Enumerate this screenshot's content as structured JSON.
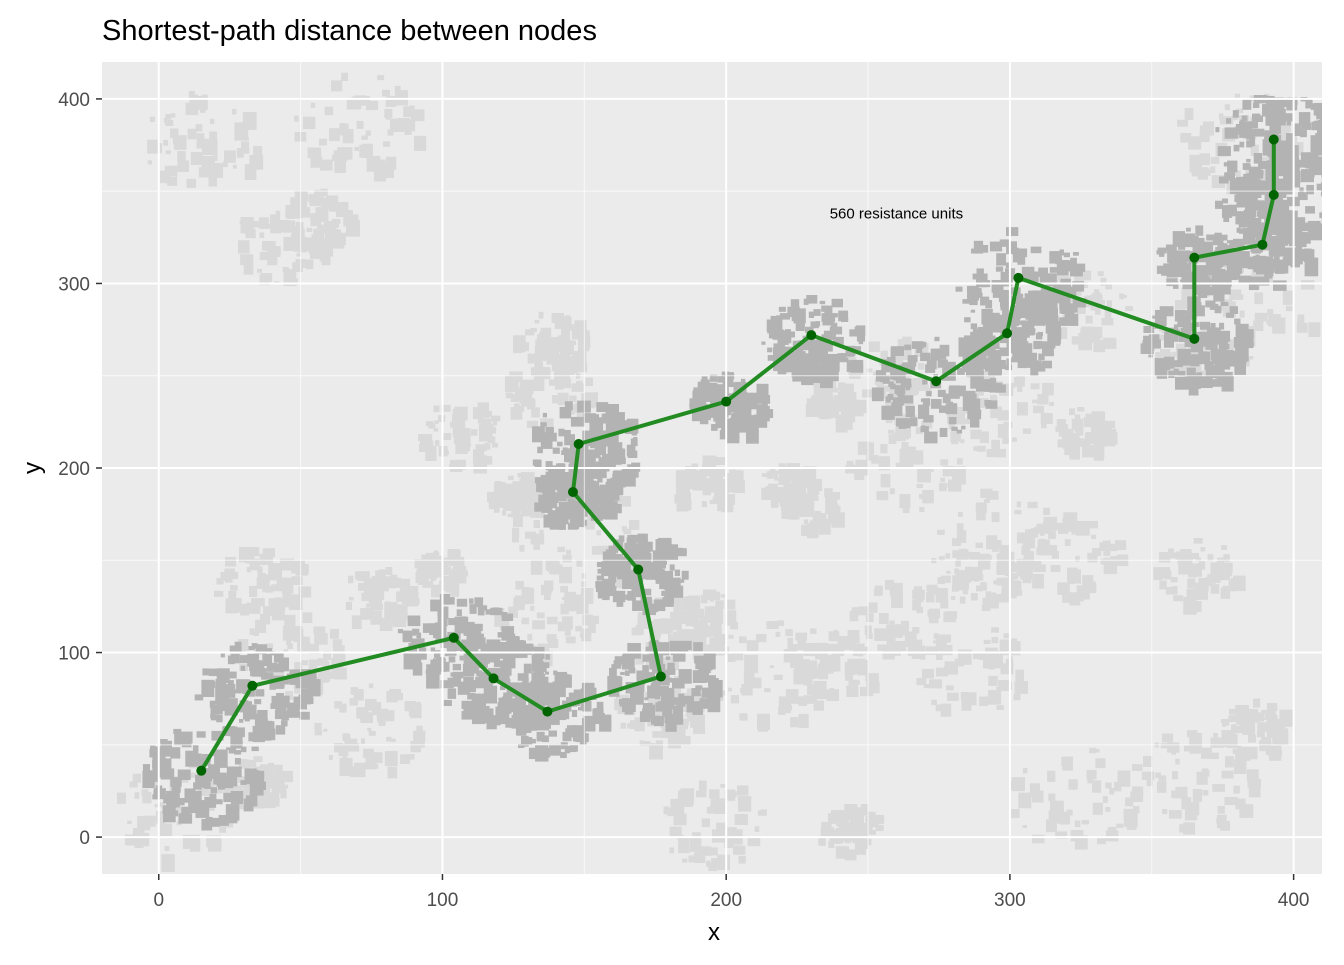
{
  "chart_data": {
    "type": "line",
    "title": "Shortest-path distance between nodes",
    "xlabel": "x",
    "ylabel": "y",
    "xlim": [
      -20,
      410
    ],
    "ylim": [
      -20,
      420
    ],
    "xticks": [
      0,
      100,
      200,
      300,
      400
    ],
    "yticks": [
      0,
      100,
      200,
      300,
      400
    ],
    "x_tick_labels": [
      "0",
      "100",
      "200",
      "300",
      "400"
    ],
    "y_tick_labels": [
      "0",
      "100",
      "200",
      "300",
      "400"
    ],
    "grid": true,
    "background": "resistance raster (gray patches on light gray)",
    "annotation": {
      "text": "560 resistance units",
      "x": 260,
      "y": 338
    },
    "path": {
      "x": [
        15,
        33,
        104,
        118,
        137,
        177,
        169,
        146,
        148,
        200,
        230,
        274,
        299,
        303,
        365,
        365,
        389,
        393,
        393
      ],
      "y": [
        36,
        82,
        108,
        86,
        68,
        87,
        145,
        187,
        213,
        236,
        272,
        247,
        273,
        303,
        270,
        314,
        321,
        348,
        378
      ]
    },
    "colors": {
      "panel": "#ebebeb",
      "grid": "#ffffff",
      "patch_light": "#d9d9d9",
      "patch_dark": "#b3b3b3",
      "line": "#228b22",
      "point": "#006400"
    }
  }
}
